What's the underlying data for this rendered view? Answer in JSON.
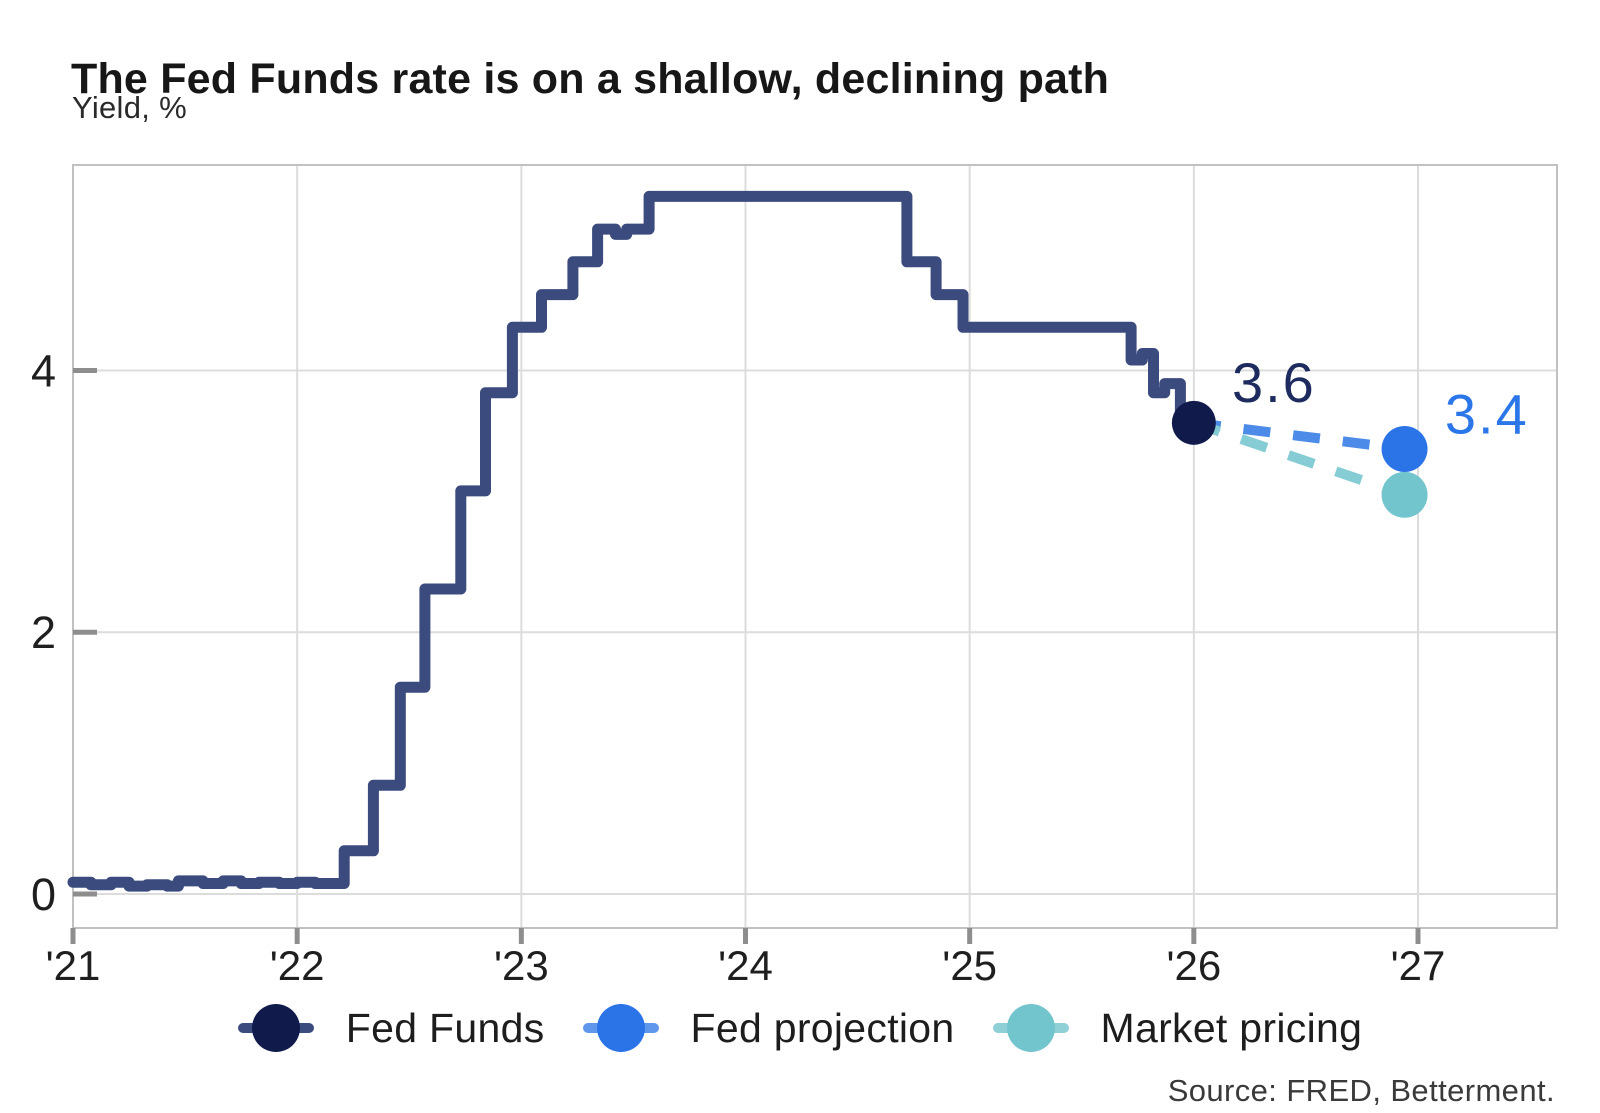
{
  "header": {
    "title": "The Fed Funds rate is on a shallow, declining path",
    "subtitle": "Yield, %"
  },
  "footer": {
    "source": "Source: FRED, Betterment."
  },
  "colors": {
    "fed_funds_line": "#3C4B7D",
    "fed_funds_dot": "#101B4C",
    "fed_projection_dot": "#2A74E8",
    "fed_projection_dash": "#4C8BE8",
    "market_pricing_dot": "#72C4CD",
    "market_pricing_dash": "#86CCD4",
    "gridline": "#DCDCDC",
    "plot_border": "#C1C1C1",
    "tick": "#8E8E8E",
    "axis_text": "#1F1F1F",
    "annotation_fed_funds": "#1D2B5F",
    "annotation_fed_projection": "#2B76E9"
  },
  "legend": [
    {
      "label": "Fed Funds",
      "dot_color": "#101B4C",
      "line_color": "#3C4B7D"
    },
    {
      "label": "Fed projection",
      "dot_color": "#2A74E8",
      "line_color": "#5E97EC"
    },
    {
      "label": "Market pricing",
      "dot_color": "#72C4CD",
      "line_color": "#8FD0D7"
    }
  ],
  "chart_data": {
    "type": "line",
    "title": "The Fed Funds rate is on a shallow, declining path",
    "xlabel": "",
    "ylabel": "Yield, %",
    "x_range": [
      2021.0,
      2027.62
    ],
    "y_range": [
      -0.26,
      5.57
    ],
    "x_ticks": [
      2021,
      2022,
      2023,
      2024,
      2025,
      2026,
      2027
    ],
    "x_tick_labels": [
      "'21",
      "'22",
      "'23",
      "'24",
      "'25",
      "'26",
      "'27"
    ],
    "y_ticks": [
      0,
      2,
      4
    ],
    "y_tick_labels": [
      "0",
      "2",
      "4"
    ],
    "grid": true,
    "legend_position": "bottom",
    "series": [
      {
        "name": "Fed Funds",
        "mode": "step",
        "color": "#3C4B7D",
        "line_width": 11,
        "points": [
          [
            2021.0,
            0.09
          ],
          [
            2021.08,
            0.07
          ],
          [
            2021.17,
            0.09
          ],
          [
            2021.25,
            0.06
          ],
          [
            2021.33,
            0.07
          ],
          [
            2021.42,
            0.06
          ],
          [
            2021.47,
            0.1
          ],
          [
            2021.58,
            0.08
          ],
          [
            2021.67,
            0.1
          ],
          [
            2021.75,
            0.08
          ],
          [
            2021.83,
            0.09
          ],
          [
            2021.92,
            0.08
          ],
          [
            2022.0,
            0.09
          ],
          [
            2022.08,
            0.08
          ],
          [
            2022.21,
            0.33
          ],
          [
            2022.34,
            0.83
          ],
          [
            2022.46,
            1.58
          ],
          [
            2022.57,
            2.33
          ],
          [
            2022.73,
            3.08
          ],
          [
            2022.84,
            3.83
          ],
          [
            2022.96,
            4.33
          ],
          [
            2023.09,
            4.58
          ],
          [
            2023.23,
            4.83
          ],
          [
            2023.34,
            5.08
          ],
          [
            2023.42,
            5.04
          ],
          [
            2023.47,
            5.08
          ],
          [
            2023.57,
            5.33
          ],
          [
            2024.72,
            4.83
          ],
          [
            2024.85,
            4.58
          ],
          [
            2024.97,
            4.33
          ],
          [
            2025.72,
            4.08
          ],
          [
            2025.77,
            4.13
          ],
          [
            2025.82,
            3.83
          ],
          [
            2025.87,
            3.9
          ],
          [
            2025.94,
            3.58
          ],
          [
            2026.0,
            3.58
          ]
        ],
        "end_dot": {
          "x": 2026.0,
          "y": 3.6,
          "color": "#101B4C",
          "radius": 22
        },
        "annotation": {
          "text": "3.6",
          "x": 2026.17,
          "y": 3.76,
          "color": "#1D2B5F"
        }
      },
      {
        "name": "Fed projection",
        "mode": "dashed-projection",
        "dash_color": "#4C8BE8",
        "from": [
          2026.0,
          3.6
        ],
        "to": [
          2026.94,
          3.4
        ],
        "dot": {
          "color": "#2A74E8",
          "radius": 23
        },
        "annotation": {
          "text": "3.4",
          "x": 2027.12,
          "y": 3.52,
          "color": "#2B76E9"
        }
      },
      {
        "name": "Market pricing",
        "mode": "dashed-projection",
        "dash_color": "#86CCD4",
        "from": [
          2026.0,
          3.6
        ],
        "to": [
          2026.94,
          3.05
        ],
        "dot": {
          "color": "#72C4CD",
          "radius": 23
        },
        "annotation": null
      }
    ]
  }
}
